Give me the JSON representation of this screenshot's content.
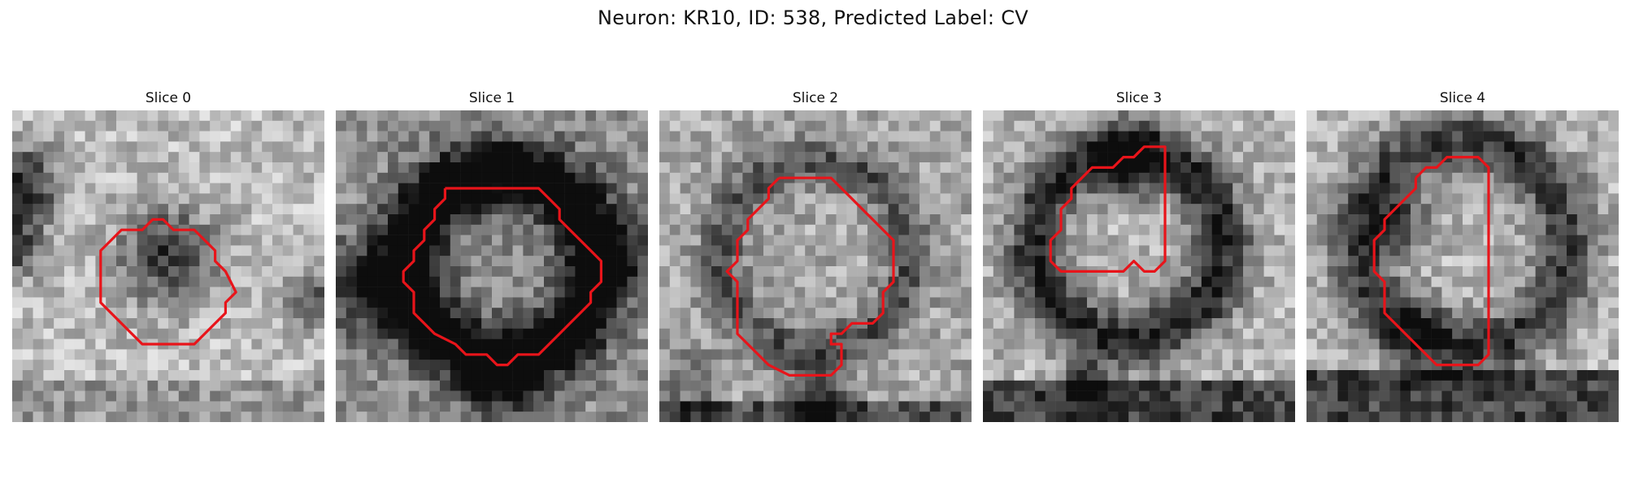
{
  "figure": {
    "title": "Neuron: KR10, ID: 538, Predicted Label: CV"
  },
  "contour_color": "#e8141a",
  "slices": [
    {
      "title": "Slice 0"
    },
    {
      "title": "Slice 1"
    },
    {
      "title": "Slice 2"
    },
    {
      "title": "Slice 3"
    },
    {
      "title": "Slice 4"
    }
  ]
}
